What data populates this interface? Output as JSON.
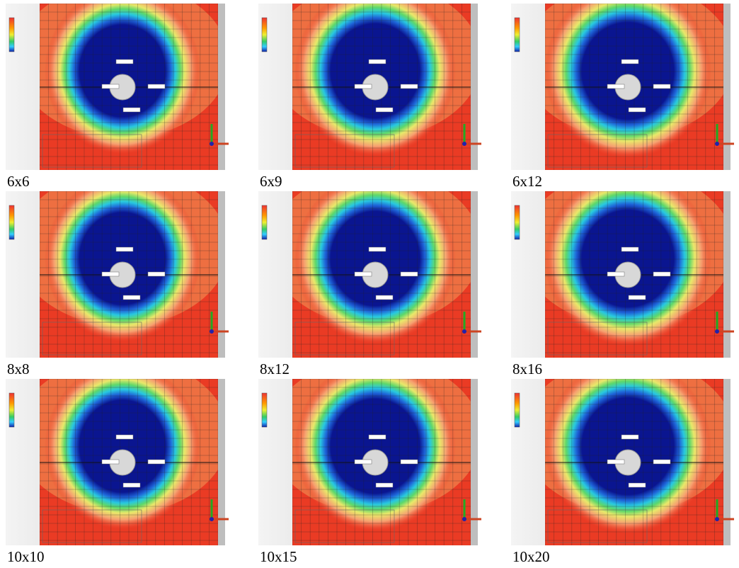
{
  "panels": [
    {
      "label": "6x6"
    },
    {
      "label": "6x9"
    },
    {
      "label": "6x12"
    },
    {
      "label": "8x8"
    },
    {
      "label": "8x12"
    },
    {
      "label": "8x16"
    },
    {
      "label": "10x10"
    },
    {
      "label": "10x15"
    },
    {
      "label": "10x20"
    }
  ]
}
